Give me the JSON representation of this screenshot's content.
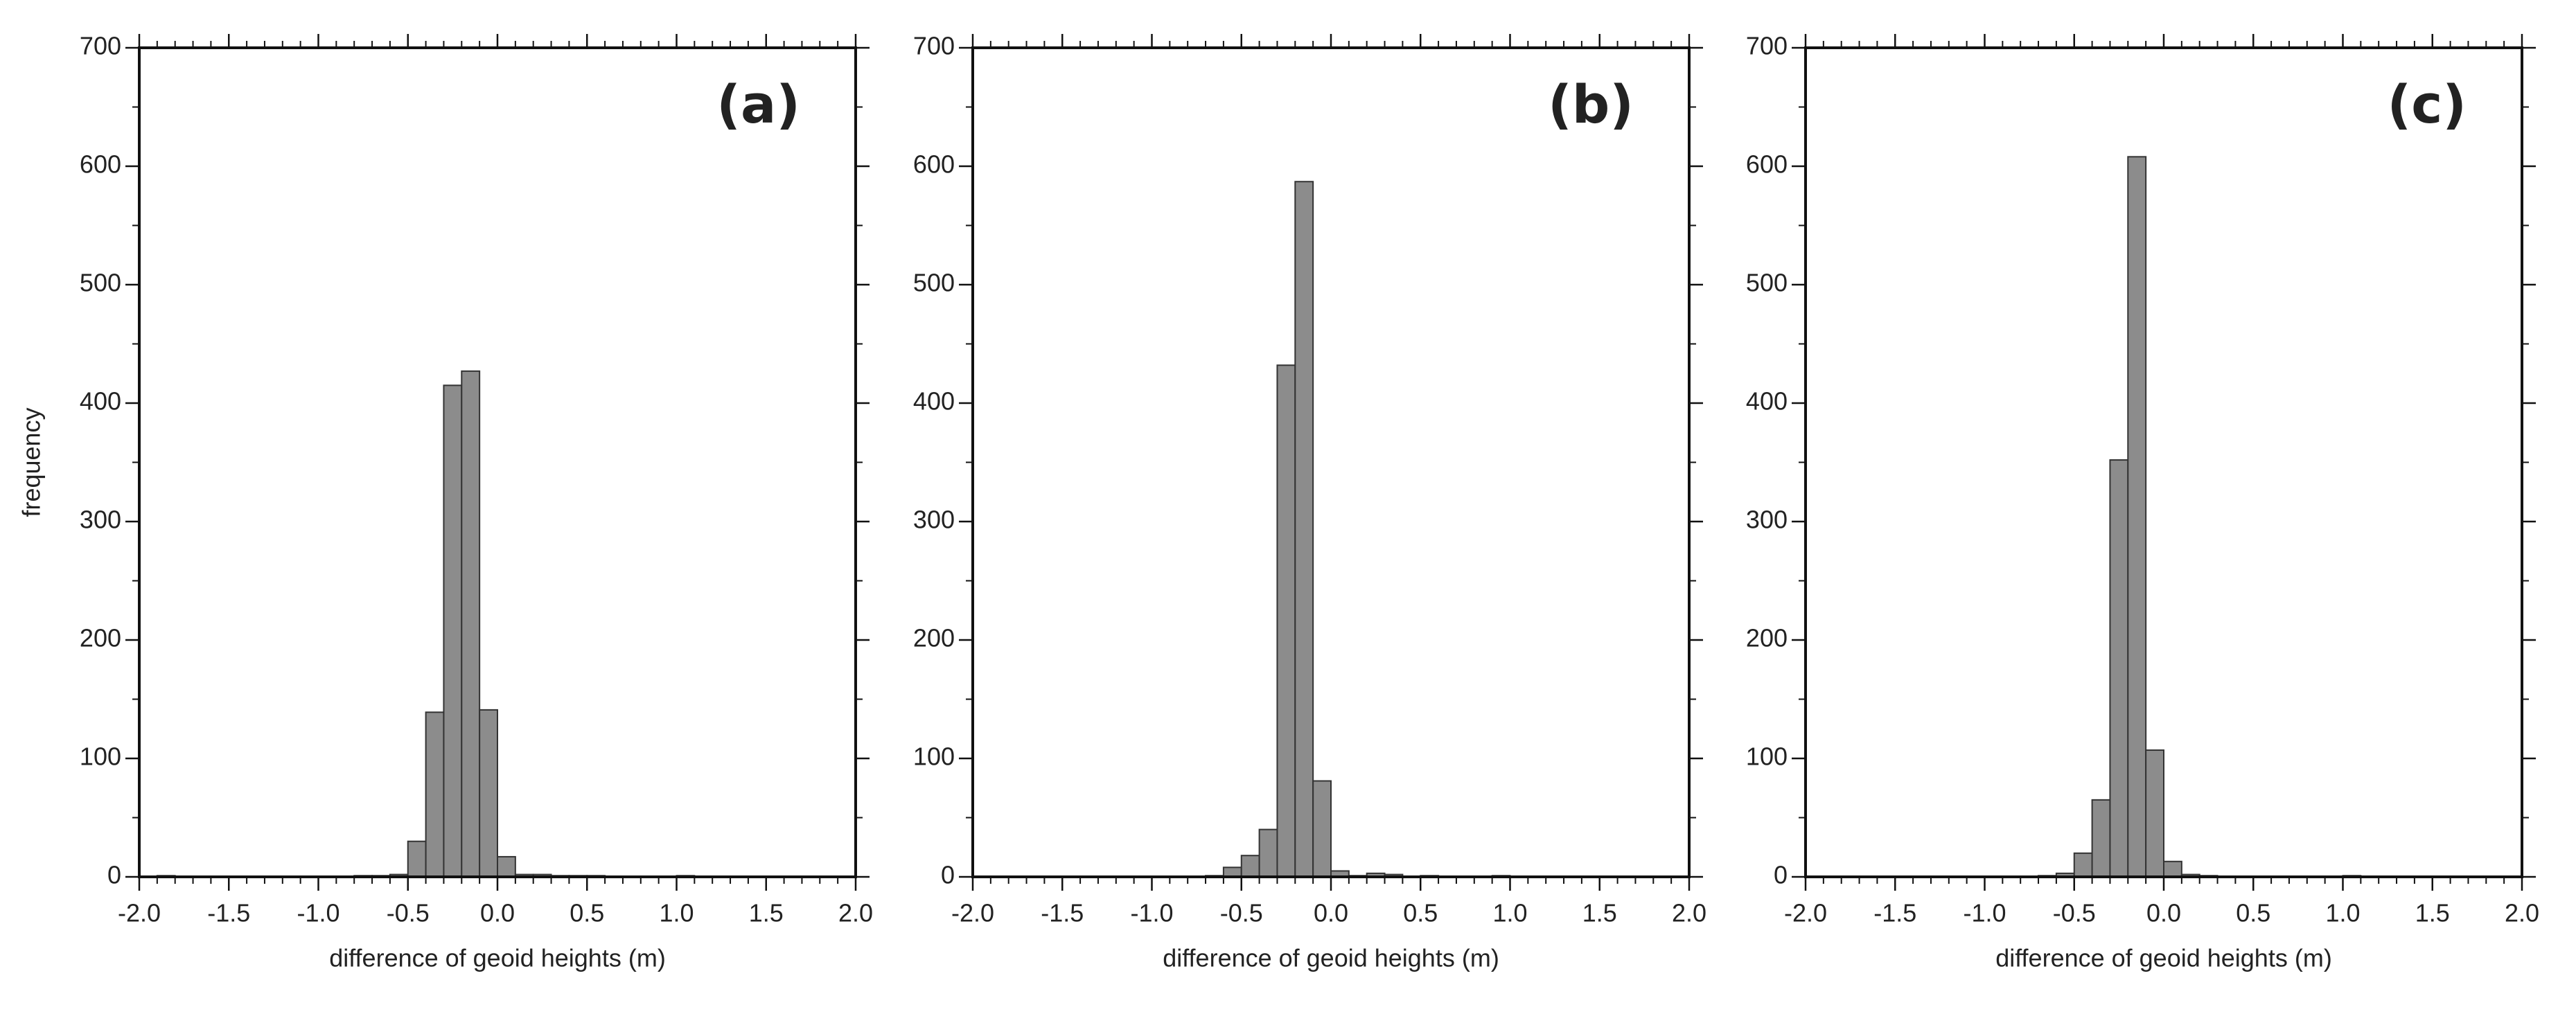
{
  "chart_data": [
    {
      "type": "histogram",
      "title": "(a)",
      "xlabel": "difference of geoid heights (m)",
      "ylabel": "frequency",
      "bins": [
        -2,
        -1.9,
        -1.8,
        -1.7,
        -1.6,
        -1.5,
        -1.4,
        -1.3,
        -1.2,
        -1.1,
        -1,
        -0.9,
        -0.8,
        -0.7,
        -0.6,
        -0.5,
        -0.4,
        -0.3,
        -0.2,
        -0.1,
        0,
        0.1,
        0.2,
        0.3,
        0.4,
        0.5,
        0.6,
        0.7,
        0.8,
        0.9,
        1,
        1.1,
        1.2,
        1.3,
        1.4,
        1.5,
        1.6,
        1.7,
        1.8,
        1.9,
        2
      ],
      "values": [
        0,
        1,
        0,
        0,
        0,
        0,
        0,
        0,
        0,
        0,
        0,
        0,
        1,
        1,
        2,
        30,
        139,
        415,
        427,
        141,
        17,
        2,
        2,
        1,
        1,
        1,
        0,
        0,
        0,
        0,
        1,
        0,
        0,
        0,
        0,
        0,
        0,
        0,
        0,
        0
      ],
      "color": "#8c8c8c",
      "xlim": [
        -2,
        2
      ],
      "ylim": [
        0,
        700
      ],
      "xticks": [
        {
          "value": -2,
          "label": "-2.0"
        },
        -1.5,
        {
          "value": -1,
          "label": "-1.0"
        },
        -0.5,
        {
          "value": 0,
          "label": "0.0"
        },
        0.5,
        {
          "value": 1,
          "label": "1.0"
        },
        1.5,
        {
          "value": 2,
          "label": "2.0"
        }
      ],
      "yticks": [
        0,
        100,
        200,
        300,
        400,
        500,
        600,
        700
      ]
    },
    {
      "type": "histogram",
      "title": "(b)",
      "xlabel": "difference of geoid heights (m)",
      "bins": [
        -2,
        -1.9,
        -1.8,
        -1.7,
        -1.6,
        -1.5,
        -1.4,
        -1.3,
        -1.2,
        -1.1,
        -1,
        -0.9,
        -0.8,
        -0.7,
        -0.6,
        -0.5,
        -0.4,
        -0.3,
        -0.2,
        -0.1,
        0,
        0.1,
        0.2,
        0.3,
        0.4,
        0.5,
        0.6,
        0.7,
        0.8,
        0.9,
        1,
        1.1,
        1.2,
        1.3,
        1.4,
        1.5,
        1.6,
        1.7,
        1.8,
        1.9,
        2
      ],
      "values": [
        0,
        0,
        0,
        0,
        0,
        0,
        0,
        0,
        0,
        0,
        0,
        0,
        0,
        1,
        8,
        18,
        40,
        432,
        587,
        81,
        5,
        1,
        3,
        2,
        0,
        1,
        0,
        0,
        0,
        1,
        0,
        0,
        0,
        0,
        0,
        0,
        0,
        0,
        0,
        0
      ],
      "color": "#8c8c8c",
      "xlim": [
        -2,
        2
      ],
      "ylim": [
        0,
        700
      ],
      "xticks": [
        {
          "value": -2,
          "label": "-2.0"
        },
        -1.5,
        {
          "value": -1,
          "label": "-1.0"
        },
        -0.5,
        {
          "value": 0,
          "label": "0.0"
        },
        0.5,
        {
          "value": 1,
          "label": "1.0"
        },
        1.5,
        {
          "value": 2,
          "label": "2.0"
        }
      ],
      "yticks": [
        0,
        100,
        200,
        300,
        400,
        500,
        600,
        700
      ]
    },
    {
      "type": "histogram",
      "title": "(c)",
      "xlabel": "difference of geoid heights (m)",
      "bins": [
        -2,
        -1.9,
        -1.8,
        -1.7,
        -1.6,
        -1.5,
        -1.4,
        -1.3,
        -1.2,
        -1.1,
        -1,
        -0.9,
        -0.8,
        -0.7,
        -0.6,
        -0.5,
        -0.4,
        -0.3,
        -0.2,
        -0.1,
        0,
        0.1,
        0.2,
        0.3,
        0.4,
        0.5,
        0.6,
        0.7,
        0.8,
        0.9,
        1,
        1.1,
        1.2,
        1.3,
        1.4,
        1.5,
        1.6,
        1.7,
        1.8,
        1.9,
        2
      ],
      "values": [
        0,
        0,
        0,
        0,
        0,
        0,
        0,
        0,
        0,
        0,
        0,
        0,
        0,
        1,
        3,
        20,
        65,
        352,
        608,
        107,
        13,
        2,
        1,
        0,
        0,
        0,
        0,
        0,
        0,
        0,
        1,
        0,
        0,
        0,
        0,
        0,
        0,
        0,
        0,
        0
      ],
      "color": "#8c8c8c",
      "xlim": [
        -2,
        2
      ],
      "ylim": [
        0,
        700
      ],
      "xticks": [
        {
          "value": -2,
          "label": "-2.0"
        },
        -1.5,
        {
          "value": -1,
          "label": "-1.0"
        },
        -0.5,
        {
          "value": 0,
          "label": "0.0"
        },
        0.5,
        {
          "value": 1,
          "label": "1.0"
        },
        1.5,
        {
          "value": 2,
          "label": "2.0"
        }
      ],
      "yticks": [
        0,
        100,
        200,
        300,
        400,
        500,
        600,
        700
      ]
    }
  ]
}
